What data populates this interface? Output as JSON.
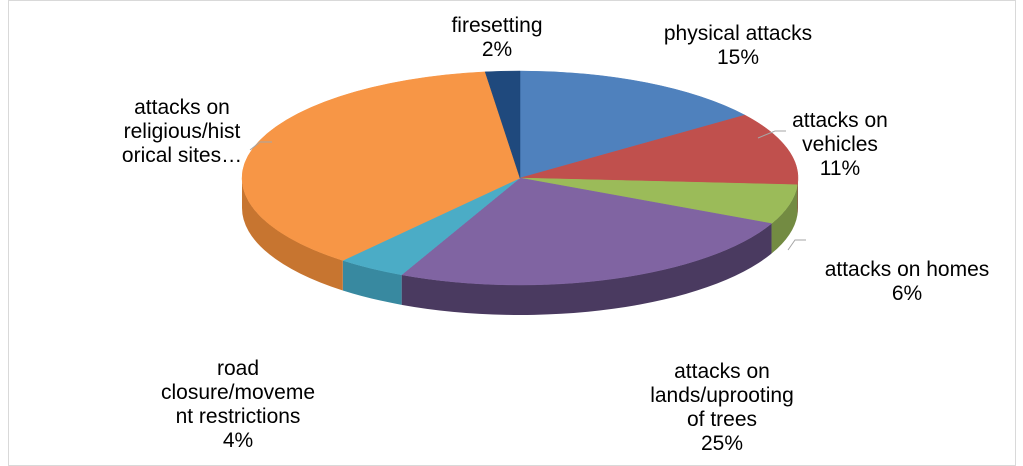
{
  "chart_data": {
    "type": "pie",
    "variant": "3d",
    "title": "",
    "legend": "none",
    "slices": [
      {
        "label_lines": [
          "physical attacks"
        ],
        "pct_text": "15%",
        "value": 15,
        "color": "#4f81bd",
        "side": "#3a608d"
      },
      {
        "label_lines": [
          "attacks on",
          "vehicles"
        ],
        "pct_text": "11%",
        "value": 11,
        "color": "#c0504d",
        "side": "#8f3b39"
      },
      {
        "label_lines": [
          "attacks on homes"
        ],
        "pct_text": "6%",
        "value": 6,
        "color": "#9bbb59",
        "side": "#738b42"
      },
      {
        "label_lines": [
          "attacks on",
          "lands/uprooting",
          "of trees"
        ],
        "pct_text": "25%",
        "value": 25,
        "color": "#8064a2",
        "side": "#4a3a60"
      },
      {
        "label_lines": [
          "road",
          "closure/moveme",
          "nt restrictions"
        ],
        "pct_text": "4%",
        "value": 4,
        "color": "#4bacc6",
        "side": "#3889a0"
      },
      {
        "label_lines": [
          "attacks on",
          "religious/hist",
          "orical sites…"
        ],
        "pct_text": "",
        "value": 37,
        "color": "#f79646",
        "side": "#c77530"
      },
      {
        "label_lines": [
          "firesetting"
        ],
        "pct_text": "2%",
        "value": 2,
        "color": "#1f497d",
        "side": "#16365c"
      }
    ]
  }
}
